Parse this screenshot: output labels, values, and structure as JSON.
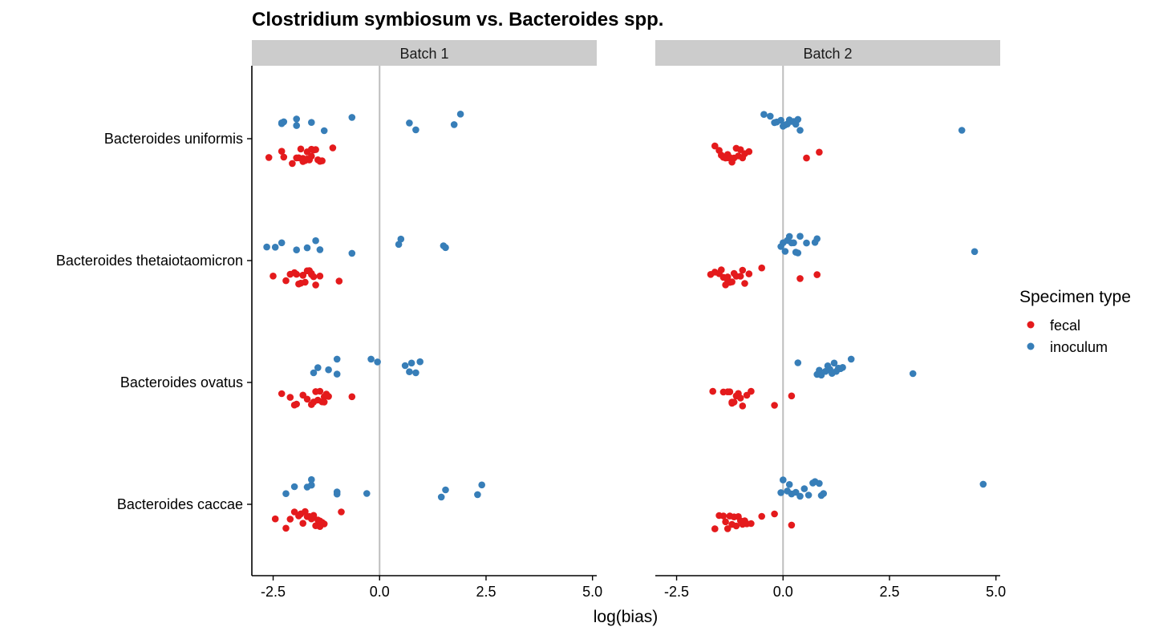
{
  "chart_data": {
    "type": "scatter",
    "title": "Clostridium symbiosum vs. Bacteroides spp.",
    "xlabel": "log(bias)",
    "ylabel": "",
    "xlim": [
      -3.0,
      5.1
    ],
    "x_ticks": [
      "-2.5",
      "0.0",
      "2.5",
      "5.0"
    ],
    "x_tick_values": [
      -2.5,
      0.0,
      2.5,
      5.0
    ],
    "reference_line_x": 0,
    "categories": [
      "Bacteroides uniformis",
      "Bacteroides thetaiotaomicron",
      "Bacteroides ovatus",
      "Bacteroides caccae"
    ],
    "panels": [
      "Batch 1",
      "Batch 2"
    ],
    "legend": {
      "title": "Specimen type",
      "position": "right",
      "entries": [
        {
          "name": "fecal",
          "color": "#E41A1C"
        },
        {
          "name": "inoculum",
          "color": "#377EB8"
        }
      ]
    },
    "series": [
      {
        "name": "fecal",
        "color": "#E41A1C",
        "points": {
          "Batch 1": {
            "Bacteroides uniformis": [
              -2.6,
              -2.3,
              -2.25,
              -2.05,
              -1.95,
              -1.9,
              -1.85,
              -1.8,
              -1.8,
              -1.75,
              -1.7,
              -1.7,
              -1.65,
              -1.6,
              -1.6,
              -1.55,
              -1.5,
              -1.45,
              -1.4,
              -1.35,
              -1.1
            ],
            "Bacteroides thetaiotaomicron": [
              -2.5,
              -2.2,
              -2.1,
              -2.0,
              -1.95,
              -1.9,
              -1.85,
              -1.8,
              -1.8,
              -1.75,
              -1.7,
              -1.65,
              -1.6,
              -1.6,
              -1.55,
              -1.5,
              -1.4,
              -0.95
            ],
            "Bacteroides ovatus": [
              -2.3,
              -2.1,
              -2.0,
              -1.95,
              -1.8,
              -1.7,
              -1.6,
              -1.55,
              -1.5,
              -1.45,
              -1.4,
              -1.35,
              -1.3,
              -1.3,
              -1.25,
              -1.2,
              -0.65
            ],
            "Bacteroides caccae": [
              -2.45,
              -2.2,
              -2.1,
              -2.0,
              -1.9,
              -1.85,
              -1.8,
              -1.75,
              -1.7,
              -1.65,
              -1.6,
              -1.55,
              -1.5,
              -1.45,
              -1.4,
              -1.4,
              -1.35,
              -1.3,
              -0.9
            ]
          },
          "Batch 2": {
            "Bacteroides uniformis": [
              -1.6,
              -1.5,
              -1.45,
              -1.4,
              -1.35,
              -1.3,
              -1.3,
              -1.25,
              -1.2,
              -1.15,
              -1.1,
              -1.05,
              -1.0,
              -0.95,
              -0.9,
              -0.8,
              0.55,
              0.85
            ],
            "Bacteroides thetaiotaomicron": [
              -1.7,
              -1.6,
              -1.5,
              -1.45,
              -1.4,
              -1.35,
              -1.3,
              -1.3,
              -1.25,
              -1.2,
              -1.15,
              -1.1,
              -1.0,
              -0.95,
              -0.9,
              -0.8,
              -0.5,
              0.4,
              0.8
            ],
            "Bacteroides ovatus": [
              -1.65,
              -1.4,
              -1.3,
              -1.25,
              -1.2,
              -1.2,
              -1.15,
              -1.1,
              -1.05,
              -1.0,
              -0.95,
              -0.85,
              -0.75,
              -0.2,
              0.2
            ],
            "Bacteroides caccae": [
              -1.6,
              -1.5,
              -1.4,
              -1.35,
              -1.3,
              -1.25,
              -1.2,
              -1.15,
              -1.1,
              -1.05,
              -1.0,
              -0.95,
              -0.9,
              -0.85,
              -0.75,
              -0.5,
              -0.2,
              0.2
            ]
          }
        }
      },
      {
        "name": "inoculum",
        "color": "#377EB8",
        "points": {
          "Batch 1": {
            "Bacteroides uniformis": [
              -2.3,
              -2.25,
              -2.3,
              -1.95,
              -1.95,
              -1.6,
              -1.3,
              -0.65,
              0.7,
              0.85,
              1.75,
              1.9
            ],
            "Bacteroides thetaiotaomicron": [
              -2.65,
              -2.45,
              -2.3,
              -1.95,
              -1.7,
              -1.5,
              -1.4,
              -0.65,
              0.45,
              0.5,
              1.5,
              1.55
            ],
            "Bacteroides ovatus": [
              -1.55,
              -1.45,
              -1.2,
              -1.0,
              -1.0,
              -0.2,
              -0.05,
              0.6,
              0.7,
              0.75,
              0.85,
              0.95
            ],
            "Bacteroides caccae": [
              -2.2,
              -2.0,
              -1.7,
              -1.6,
              -1.6,
              -1.0,
              -1.0,
              -0.3,
              1.45,
              1.55,
              2.3,
              2.4
            ]
          },
          "Batch 2": {
            "Bacteroides uniformis": [
              -0.45,
              -0.3,
              -0.2,
              -0.15,
              -0.05,
              0.0,
              0.05,
              0.1,
              0.15,
              0.2,
              0.25,
              0.3,
              0.35,
              0.4,
              4.2
            ],
            "Bacteroides thetaiotaomicron": [
              -0.05,
              0.0,
              0.05,
              0.1,
              0.15,
              0.2,
              0.25,
              0.3,
              0.35,
              0.4,
              0.55,
              0.75,
              0.8,
              4.5
            ],
            "Bacteroides ovatus": [
              0.35,
              0.8,
              0.85,
              0.9,
              1.0,
              1.05,
              1.1,
              1.15,
              1.2,
              1.25,
              1.3,
              1.35,
              1.4,
              1.6,
              3.05
            ],
            "Bacteroides caccae": [
              -0.05,
              0.0,
              0.1,
              0.15,
              0.2,
              0.3,
              0.4,
              0.5,
              0.6,
              0.7,
              0.75,
              0.85,
              0.9,
              0.95,
              4.7
            ]
          }
        }
      }
    ]
  }
}
